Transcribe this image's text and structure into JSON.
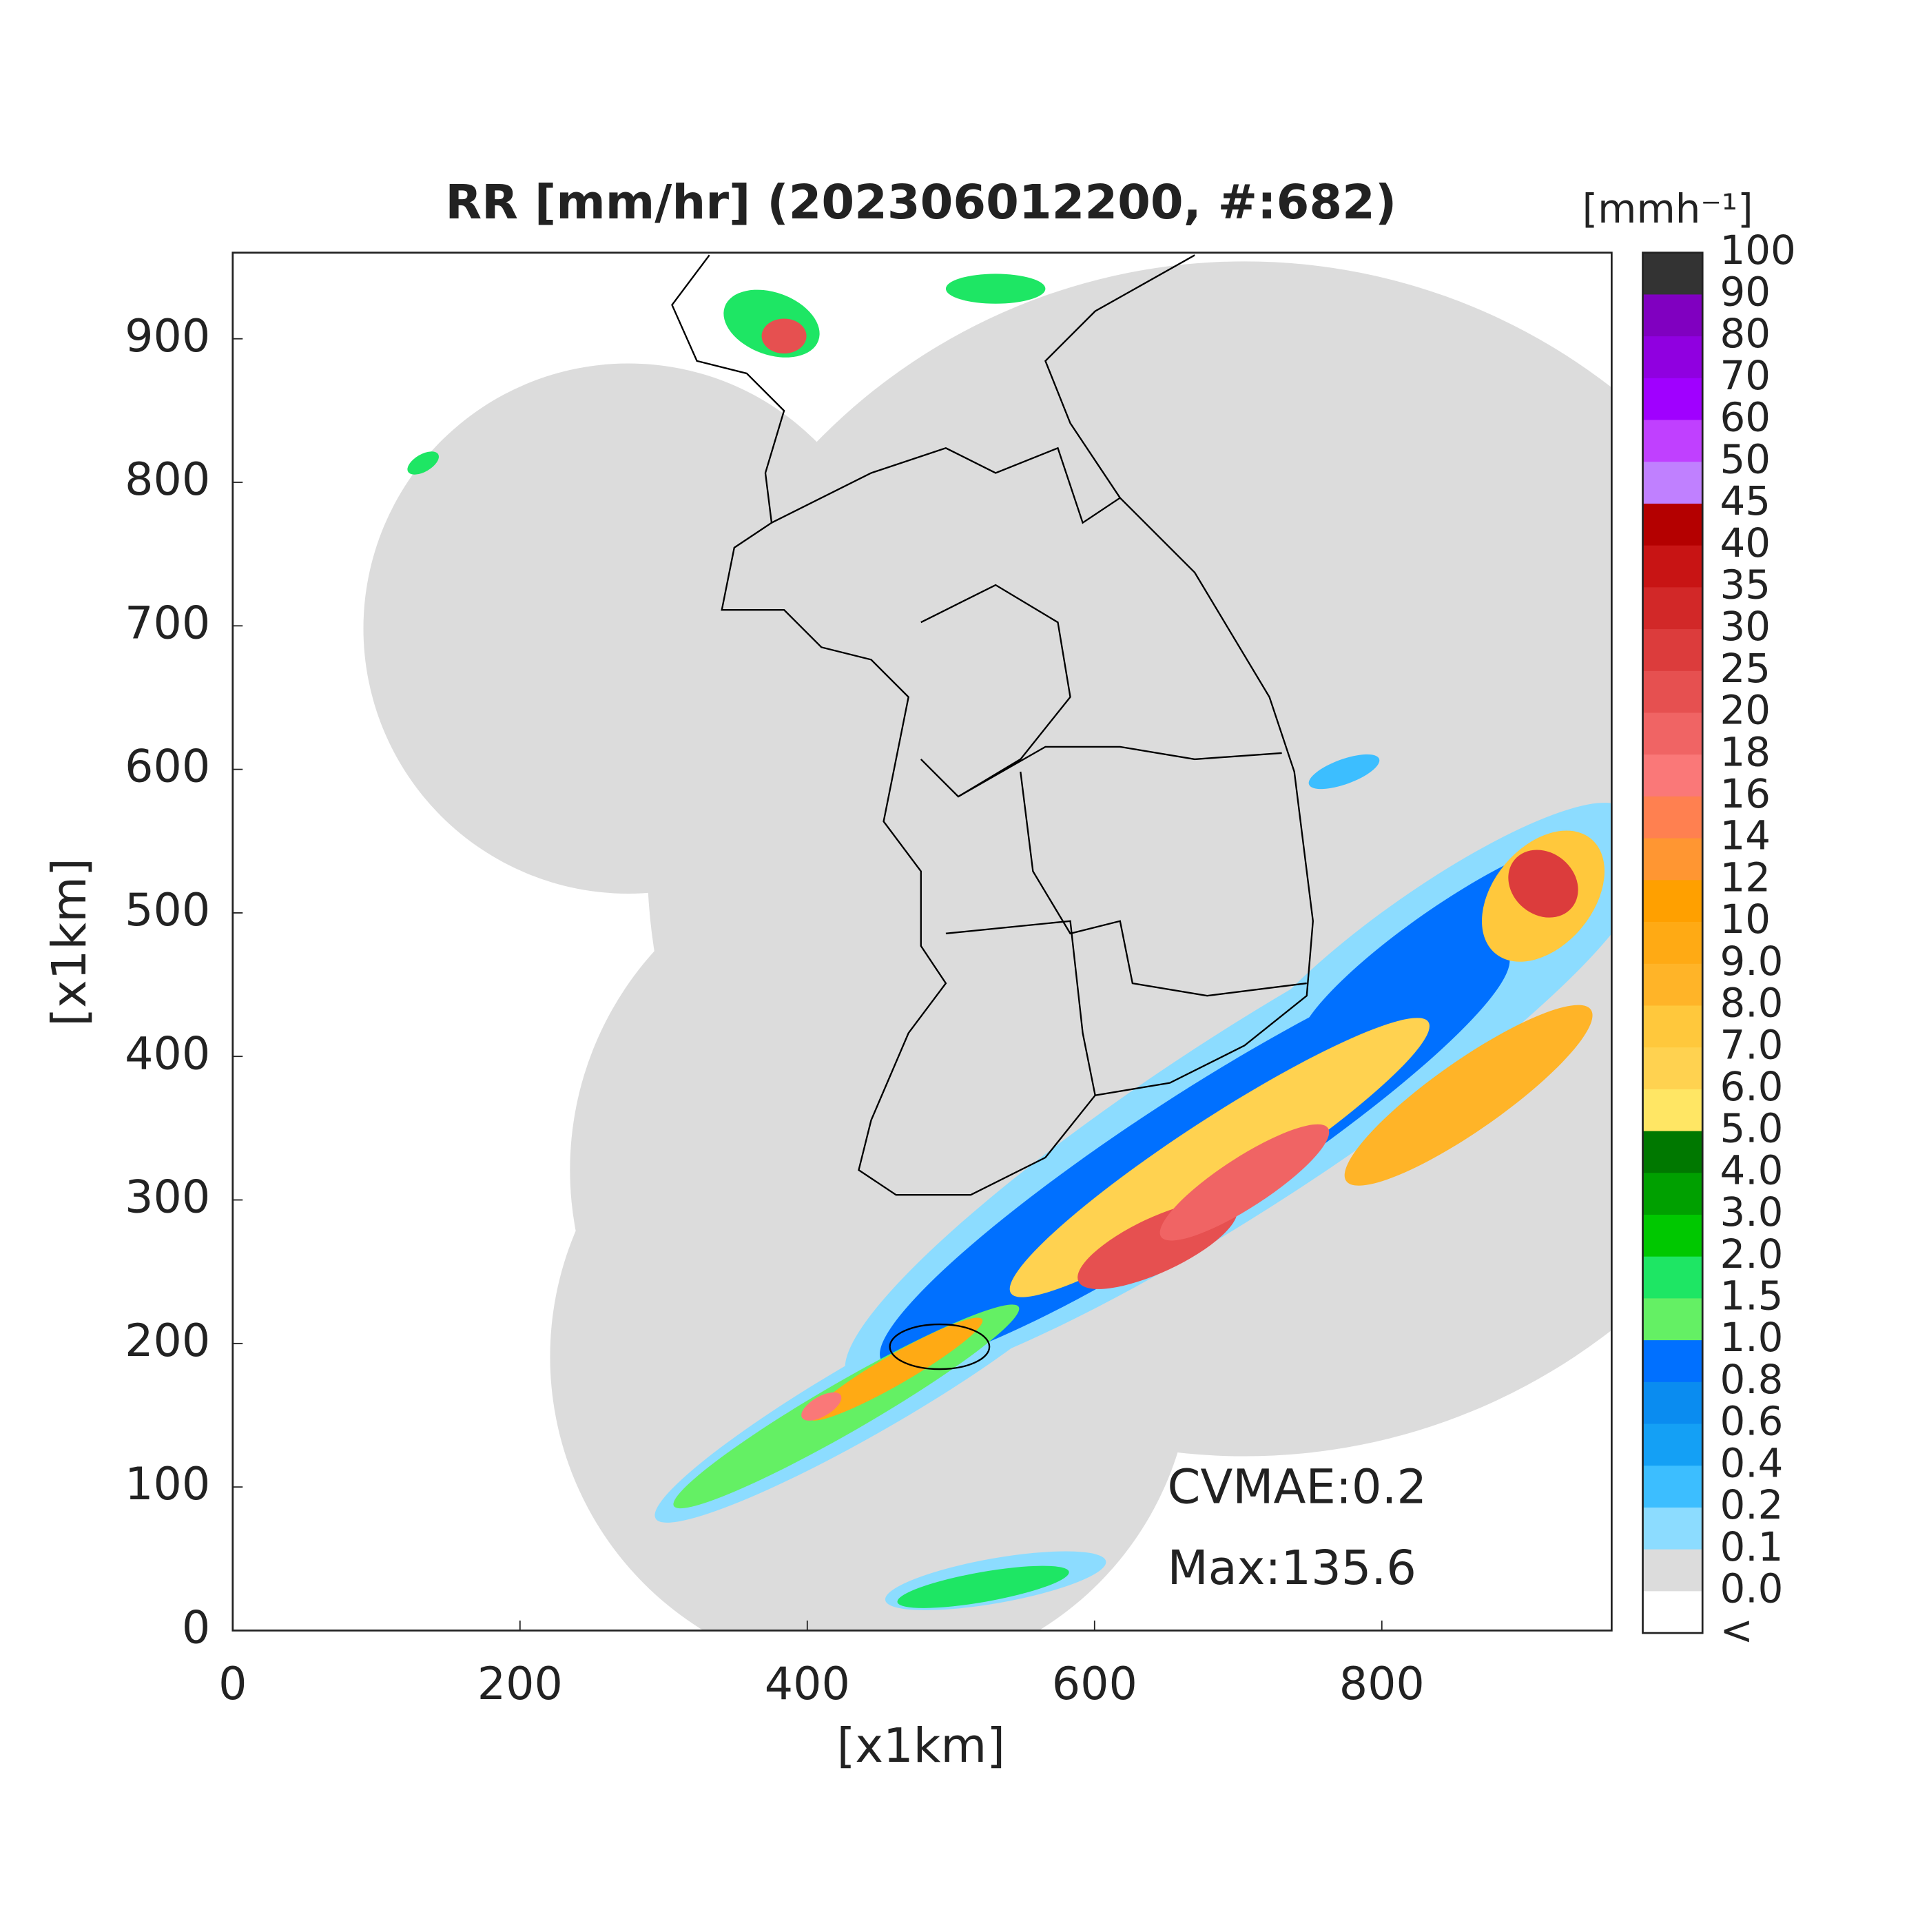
{
  "chart_data": {
    "type": "map",
    "title": "RR [mm/hr] (202306012200, #:682)",
    "xlabel": "[x1km]",
    "ylabel": "[x1km]",
    "xlim": [
      0,
      960
    ],
    "ylim": [
      0,
      960
    ],
    "xticks": [
      0,
      200,
      400,
      600,
      800
    ],
    "yticks": [
      0,
      100,
      200,
      300,
      400,
      500,
      600,
      700,
      800,
      900
    ],
    "annotations": [
      "CVMAE:0.2",
      "Max:135.6"
    ],
    "colorbar": {
      "label": "[mmh⁻¹]",
      "labels": [
        "100",
        "90",
        "80",
        "70",
        "60",
        "50",
        "45",
        "40",
        "35",
        "30",
        "25",
        "20",
        "18",
        "16",
        "14",
        "12",
        "10",
        "9.0",
        "8.0",
        "7.0",
        "6.0",
        "5.0",
        "4.0",
        "3.0",
        "2.0",
        "1.5",
        "1.0",
        "0.8",
        "0.6",
        "0.4",
        "0.2",
        "0.1",
        "0.0",
        "<"
      ],
      "colors": [
        "#333333",
        "#8000c0",
        "#9000e0",
        "#a000ff",
        "#c040ff",
        "#c080ff",
        "#b40000",
        "#c81414",
        "#d22828",
        "#dc3c3c",
        "#e65050",
        "#f06464",
        "#fa7878",
        "#ff8050",
        "#ff9632",
        "#ffa000",
        "#ffaa14",
        "#ffb428",
        "#ffc83c",
        "#ffd250",
        "#ffe664",
        "#007800",
        "#00a000",
        "#00c800",
        "#1ee664",
        "#64f064",
        "#0070ff",
        "#0a8cf0",
        "#14a0f5",
        "#3cbeff",
        "#8cdcff",
        "#dcdcdc",
        "#ffffff"
      ]
    }
  }
}
